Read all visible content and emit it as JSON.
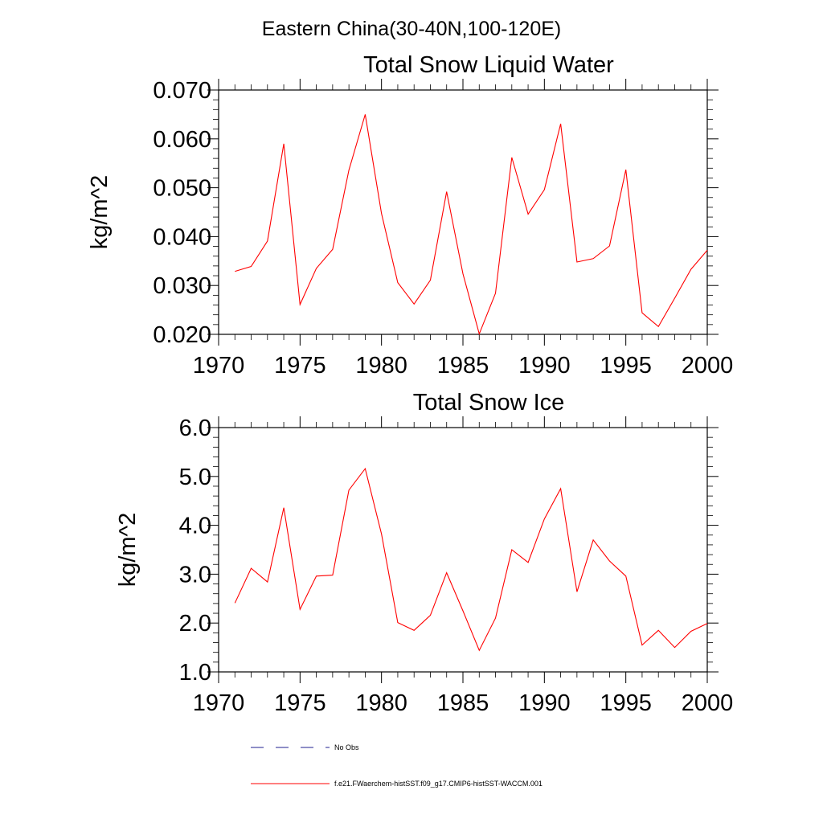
{
  "page": {
    "title": "Eastern China(30-40N,100-120E)"
  },
  "legend": {
    "items": [
      {
        "label": "No Obs",
        "color": "#1f1f8f",
        "style": "dashed"
      },
      {
        "label": "f.e21.FWaerchem-histSST.f09_g17.CMIP6-histSST-WACCM.001",
        "color": "#ff0000",
        "style": "solid"
      }
    ]
  },
  "chart_data": [
    {
      "type": "line",
      "title": "Total Snow Liquid Water",
      "xlabel": "",
      "ylabel": "kg/m^2",
      "xlim": [
        1970,
        2000
      ],
      "ylim": [
        0.02,
        0.07
      ],
      "xticks": [
        1970,
        1975,
        1980,
        1985,
        1990,
        1995,
        2000
      ],
      "xtick_labels": [
        "1970",
        "1975",
        "1980",
        "1985",
        "1990",
        "1995",
        "2000"
      ],
      "yticks": [
        0.02,
        0.03,
        0.04,
        0.05,
        0.06,
        0.07
      ],
      "ytick_labels": [
        "0.020",
        "0.030",
        "0.040",
        "0.050",
        "0.060",
        "0.070"
      ],
      "grid": false,
      "x": [
        1971,
        1972,
        1973,
        1974,
        1975,
        1976,
        1977,
        1978,
        1979,
        1980,
        1981,
        1982,
        1983,
        1984,
        1985,
        1986,
        1987,
        1988,
        1989,
        1990,
        1991,
        1992,
        1993,
        1994,
        1995,
        1996,
        1997,
        1998,
        1999,
        2000
      ],
      "series": [
        {
          "color": "#ff0000",
          "values": [
            0.0329,
            0.0339,
            0.0391,
            0.059,
            0.0261,
            0.0335,
            0.0374,
            0.0536,
            0.065,
            0.0447,
            0.0306,
            0.0262,
            0.0311,
            0.0492,
            0.0324,
            0.0201,
            0.0284,
            0.0562,
            0.0446,
            0.0496,
            0.0631,
            0.0348,
            0.0355,
            0.0381,
            0.0537,
            0.0244,
            0.0216,
            0.0274,
            0.0333,
            0.0372
          ]
        }
      ]
    },
    {
      "type": "line",
      "title": "Total Snow Ice",
      "xlabel": "",
      "ylabel": "kg/m^2",
      "xlim": [
        1970,
        2000
      ],
      "ylim": [
        1.0,
        6.0
      ],
      "xticks": [
        1970,
        1975,
        1980,
        1985,
        1990,
        1995,
        2000
      ],
      "xtick_labels": [
        "1970",
        "1975",
        "1980",
        "1985",
        "1990",
        "1995",
        "2000"
      ],
      "yticks": [
        1.0,
        2.0,
        3.0,
        4.0,
        5.0,
        6.0
      ],
      "ytick_labels": [
        "1.0",
        "2.0",
        "3.0",
        "4.0",
        "5.0",
        "6.0"
      ],
      "grid": false,
      "x": [
        1971,
        1972,
        1973,
        1974,
        1975,
        1976,
        1977,
        1978,
        1979,
        1980,
        1981,
        1982,
        1983,
        1984,
        1985,
        1986,
        1987,
        1988,
        1989,
        1990,
        1991,
        1992,
        1993,
        1994,
        1995,
        1996,
        1997,
        1998,
        1999,
        2000
      ],
      "series": [
        {
          "color": "#ff0000",
          "values": [
            2.41,
            3.12,
            2.84,
            4.36,
            2.28,
            2.96,
            2.98,
            4.72,
            5.16,
            3.82,
            2.01,
            1.85,
            2.16,
            3.03,
            2.25,
            1.44,
            2.1,
            3.5,
            3.24,
            4.13,
            4.75,
            2.64,
            3.7,
            3.27,
            2.96,
            1.55,
            1.85,
            1.5,
            1.83,
            1.99
          ]
        }
      ]
    }
  ]
}
